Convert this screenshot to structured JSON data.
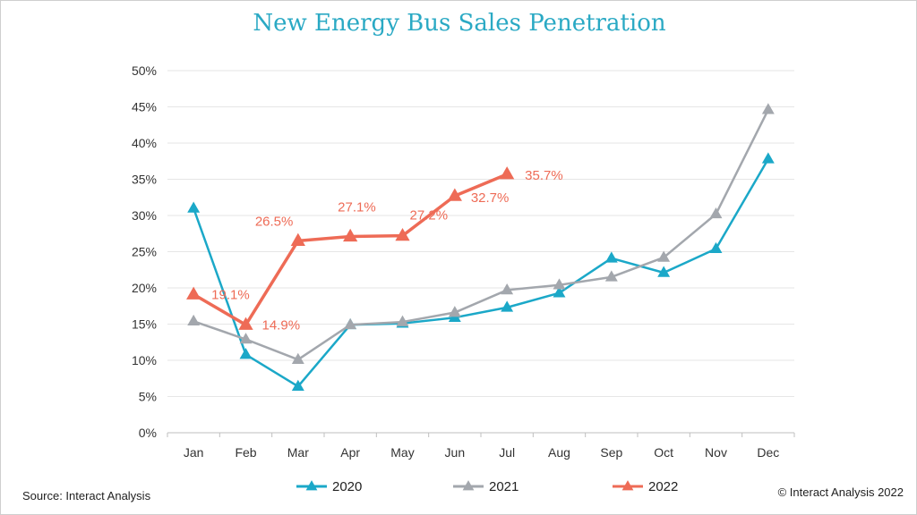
{
  "chart_data": {
    "type": "line",
    "title": "New Energy Bus Sales Penetration",
    "categories": [
      "Jan",
      "Feb",
      "Mar",
      "Apr",
      "May",
      "Jun",
      "Jul",
      "Aug",
      "Sep",
      "Oct",
      "Nov",
      "Dec"
    ],
    "ylim": [
      0,
      50
    ],
    "yticks": [
      "0%",
      "5%",
      "10%",
      "15%",
      "20%",
      "25%",
      "30%",
      "35%",
      "40%",
      "45%",
      "50%"
    ],
    "grid": true,
    "legend_position": "bottom",
    "series": [
      {
        "name": "2020",
        "color": "#1ba8c8",
        "values": [
          31.0,
          10.8,
          6.4,
          14.9,
          15.1,
          15.9,
          17.3,
          19.3,
          24.1,
          22.1,
          25.4,
          37.8
        ]
      },
      {
        "name": "2021",
        "color": "#a3a7ad",
        "values": [
          15.4,
          12.9,
          10.1,
          14.9,
          15.3,
          16.6,
          19.7,
          20.4,
          21.5,
          24.2,
          30.2,
          44.6
        ]
      },
      {
        "name": "2022",
        "color": "#ee6b56",
        "values": [
          19.1,
          14.9,
          26.5,
          27.1,
          27.2,
          32.7,
          35.7,
          null,
          null,
          null,
          null,
          null
        ],
        "labels": [
          "19.1%",
          "14.9%",
          "26.5%",
          "27.1%",
          "27.2%",
          "32.7%",
          "35.7%",
          null,
          null,
          null,
          null,
          null
        ]
      }
    ]
  },
  "footer": {
    "source": "Source: Interact Analysis",
    "copyright": "© Interact Analysis 2022"
  }
}
